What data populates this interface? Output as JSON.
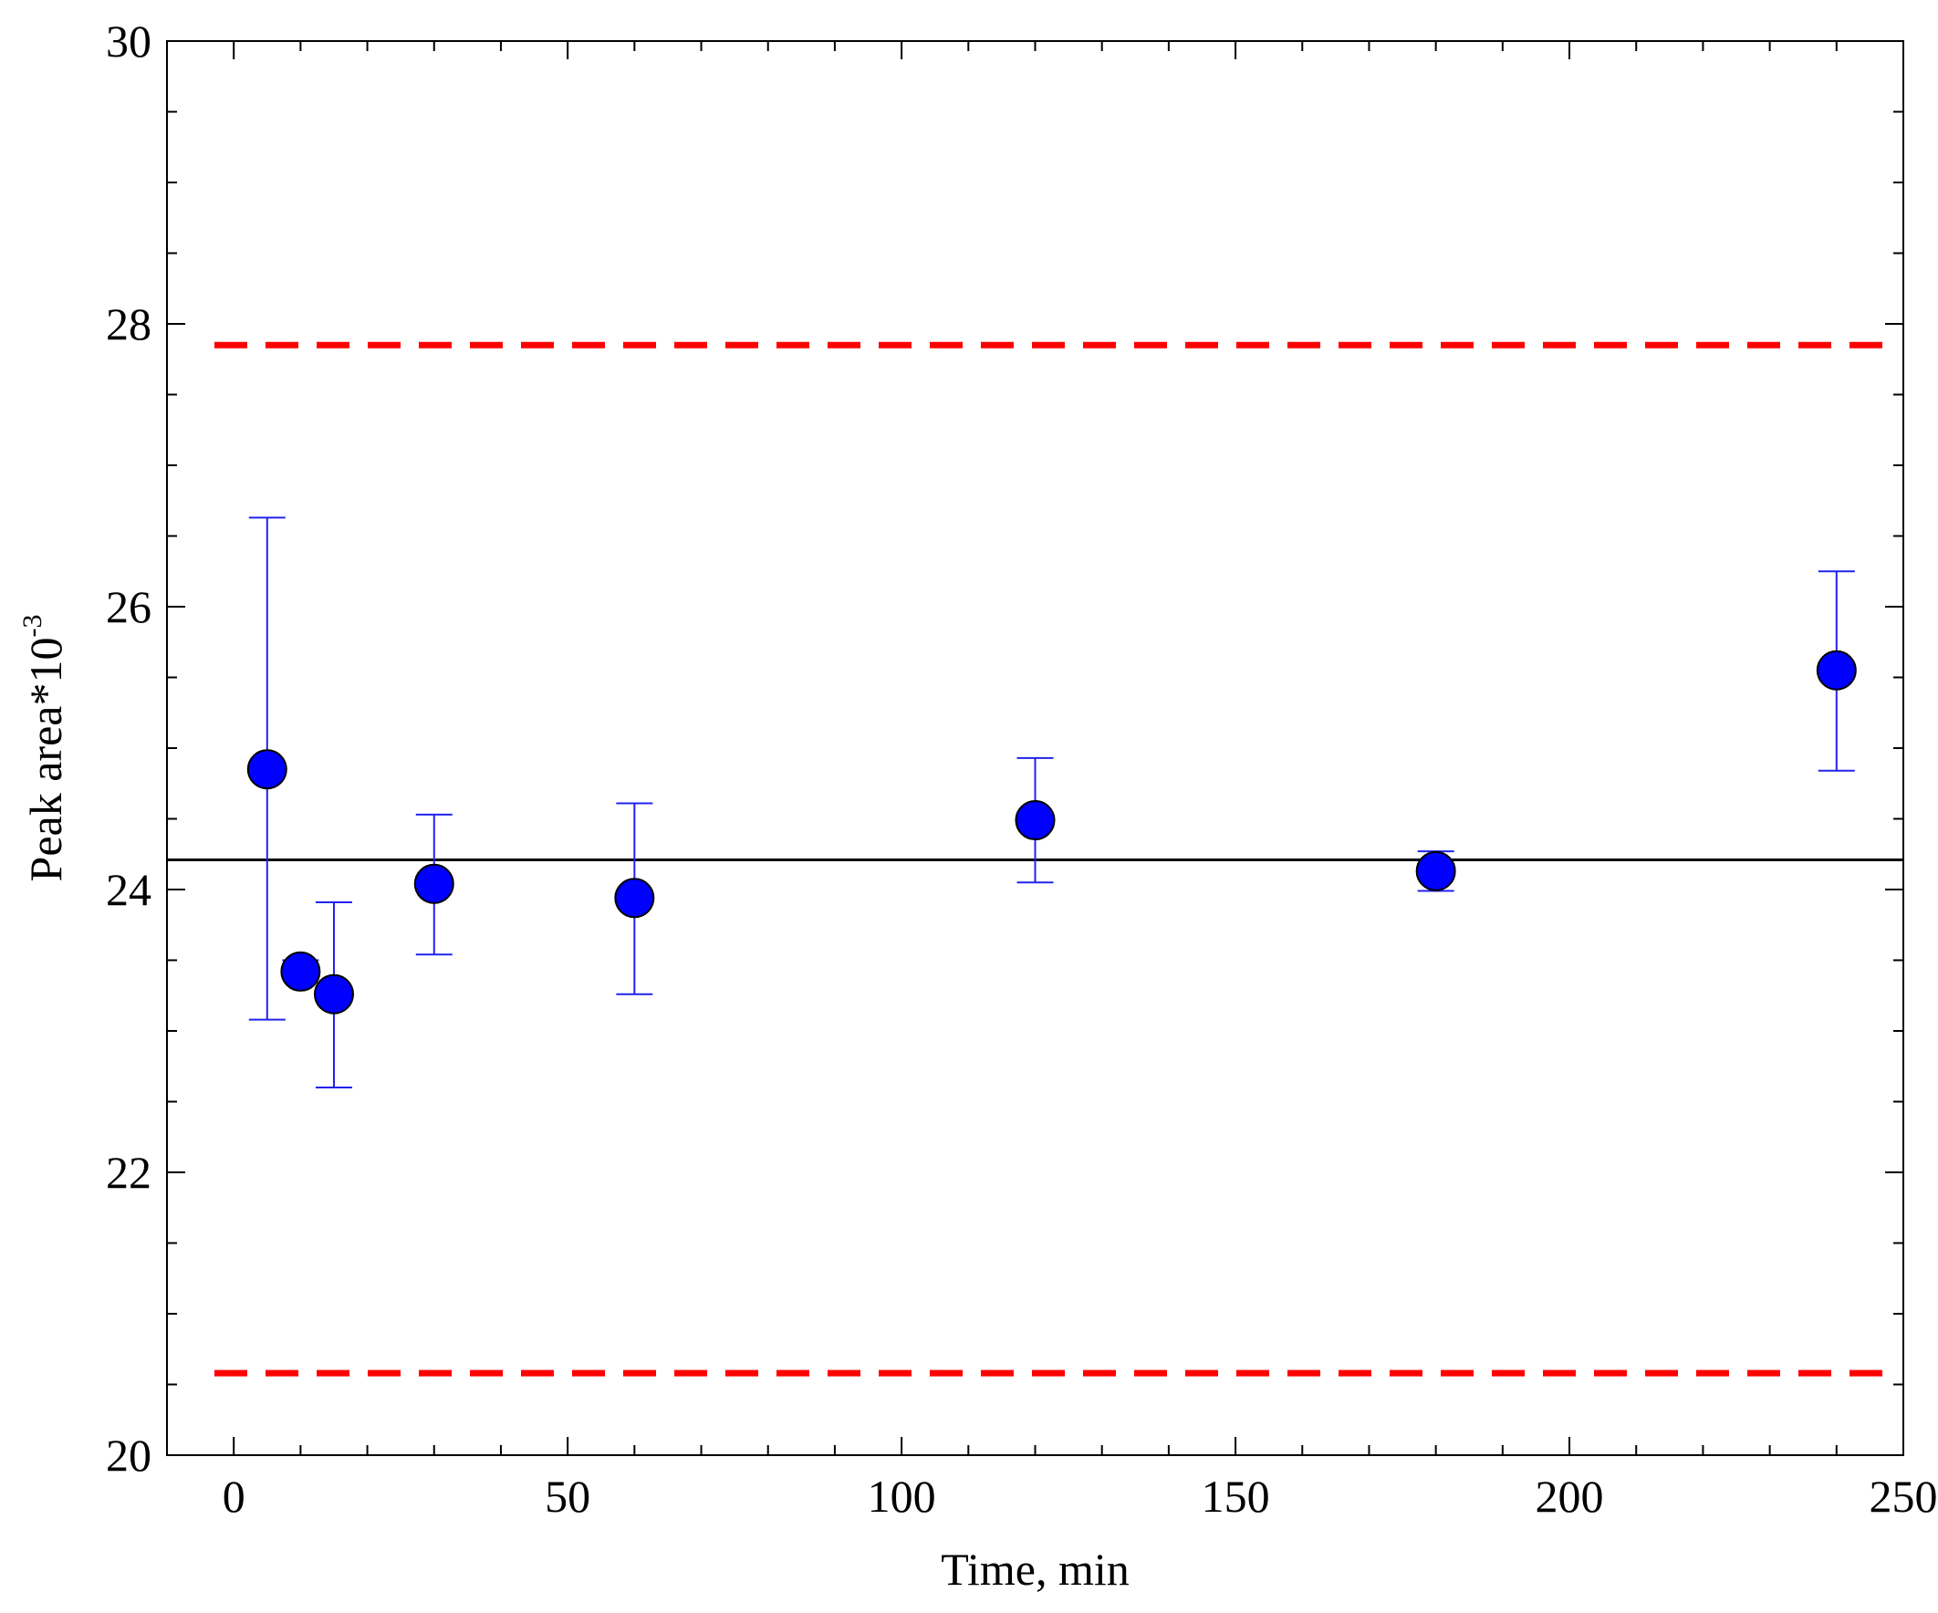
{
  "chart_data": {
    "type": "scatter",
    "title": "",
    "xlabel": "Time, min",
    "ylabel": "Peak area*10",
    "ylabel_superscript": "-3",
    "xlim": [
      -10,
      250
    ],
    "ylim": [
      20,
      30
    ],
    "x_ticks": [
      0,
      50,
      100,
      150,
      200,
      250
    ],
    "y_ticks": [
      20,
      22,
      24,
      26,
      28,
      30
    ],
    "x_tick_labels": [
      "0",
      "50",
      "100",
      "150",
      "200",
      "250"
    ],
    "y_tick_labels": [
      "20",
      "22",
      "24",
      "26",
      "28",
      "30"
    ],
    "x_minor_step": 10,
    "y_minor_step": 0.5,
    "grid": false,
    "series": [
      {
        "points": [
          {
            "x": 5,
            "y": 24.85,
            "err_low": 23.08,
            "err_high": 26.63
          },
          {
            "x": 10,
            "y": 23.42,
            "err_low": 23.37,
            "err_high": 23.5
          },
          {
            "x": 15,
            "y": 23.26,
            "err_low": 22.6,
            "err_high": 23.91
          },
          {
            "x": 30,
            "y": 24.04,
            "err_low": 23.54,
            "err_high": 24.53
          },
          {
            "x": 60,
            "y": 23.94,
            "err_low": 23.26,
            "err_high": 24.61
          },
          {
            "x": 120,
            "y": 24.49,
            "err_low": 24.05,
            "err_high": 24.93
          },
          {
            "x": 180,
            "y": 24.13,
            "err_low": 23.99,
            "err_high": 24.27
          },
          {
            "x": 240,
            "y": 25.55,
            "err_low": 24.84,
            "err_high": 26.25
          }
        ],
        "marker_color": "#0000ff",
        "error_bar_color": "#2222ee"
      }
    ],
    "reference_lines": [
      {
        "y": 24.21,
        "style": "solid",
        "color": "#000000"
      },
      {
        "y": 27.85,
        "style": "dashed",
        "color": "#ff0000"
      },
      {
        "y": 20.58,
        "style": "dashed",
        "color": "#ff0000"
      }
    ]
  }
}
